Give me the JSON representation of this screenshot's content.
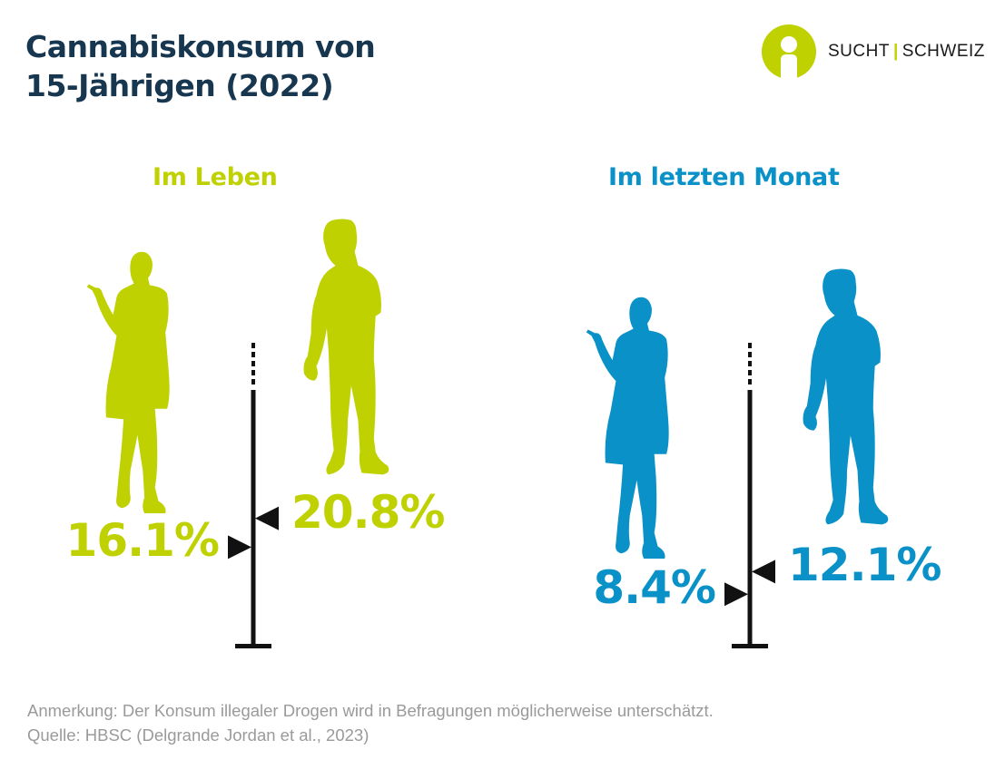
{
  "title": {
    "line1": "Cannabiskonsum von",
    "line2": "15-Jährigen (2022)"
  },
  "logo": {
    "part1": "SUCHT",
    "separator": "|",
    "part2": "SCHWEIZ",
    "icon": "person-in-circle-icon",
    "color": "#bfd100"
  },
  "colors": {
    "lifetime": "#bfd100",
    "last_month": "#0a91c8",
    "title": "#17364f",
    "axis": "#111111",
    "footer": "#9a9a9a"
  },
  "chart_data": {
    "type": "bar",
    "title": "Cannabiskonsum von 15-Jährigen (2022)",
    "unit": "%",
    "ylim": [
      0,
      30
    ],
    "axis_break_at_top": true,
    "panels": [
      {
        "label": "Im Leben",
        "color": "#bfd100",
        "series": [
          {
            "name": "Mädchen",
            "icon": "female-silhouette-icon",
            "value": 16.1,
            "label": "16.1%",
            "side": "left"
          },
          {
            "name": "Jungen",
            "icon": "male-silhouette-icon",
            "value": 20.8,
            "label": "20.8%",
            "side": "right"
          }
        ]
      },
      {
        "label": "Im letzten Monat",
        "color": "#0a91c8",
        "series": [
          {
            "name": "Mädchen",
            "icon": "female-silhouette-icon",
            "value": 8.4,
            "label": "8.4%",
            "side": "left"
          },
          {
            "name": "Jungen",
            "icon": "male-silhouette-icon",
            "value": 12.1,
            "label": "12.1%",
            "side": "right"
          }
        ]
      }
    ]
  },
  "footer": {
    "note": "Anmerkung: Der Konsum illegaler Drogen wird in Befragungen möglicherweise unterschätzt.",
    "source": "Quelle: HBSC (Delgrande Jordan et al., 2023)"
  }
}
